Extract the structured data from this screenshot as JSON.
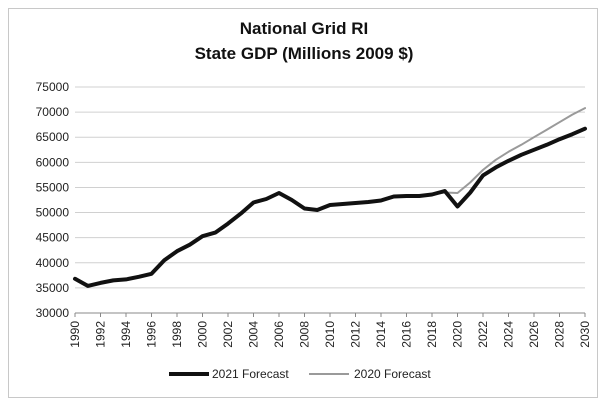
{
  "chart_data": {
    "type": "line",
    "title": "National Grid RI",
    "subtitle": "State GDP (Millions 2009 $)",
    "ylim": [
      30000,
      75000
    ],
    "y_ticks": [
      "75000",
      "70000",
      "65000",
      "60000",
      "55000",
      "50000",
      "45000",
      "40000",
      "35000",
      "30000"
    ],
    "x_tick_labels": [
      "1990",
      "1992",
      "1994",
      "1996",
      "1998",
      "2000",
      "2002",
      "2004",
      "2006",
      "2008",
      "2010",
      "2012",
      "2014",
      "2016",
      "2018",
      "2020",
      "2022",
      "2024",
      "2026",
      "2028",
      "2030"
    ],
    "grid": true,
    "legend_position": "bottom",
    "x": [
      1990,
      1991,
      1992,
      1993,
      1994,
      1995,
      1996,
      1997,
      1998,
      1999,
      2000,
      2001,
      2002,
      2003,
      2004,
      2005,
      2006,
      2007,
      2008,
      2009,
      2010,
      2011,
      2012,
      2013,
      2014,
      2015,
      2016,
      2017,
      2018,
      2019,
      2020,
      2021,
      2022,
      2023,
      2024,
      2025,
      2026,
      2027,
      2028,
      2029,
      2030
    ],
    "series": [
      {
        "name": "2021 Forecast",
        "color": "#111111",
        "values": [
          36800,
          35400,
          36000,
          36500,
          36700,
          37200,
          37800,
          40500,
          42300,
          43600,
          45300,
          46000,
          47800,
          49800,
          52000,
          52700,
          53900,
          52500,
          50800,
          50500,
          51500,
          51700,
          51900,
          52100,
          52400,
          53200,
          53300,
          53300,
          53600,
          54300,
          51200,
          54000,
          57400,
          59000,
          60300,
          61500,
          62500,
          63500,
          64600,
          65600,
          66700
        ],
        "width": 4
      },
      {
        "name": "2020 Forecast",
        "color": "#9a9a9a",
        "values": [
          36800,
          35400,
          36000,
          36500,
          36700,
          37200,
          37800,
          40500,
          42300,
          43600,
          45300,
          46000,
          47800,
          49800,
          52000,
          52700,
          53900,
          52500,
          50800,
          50500,
          51500,
          51700,
          51900,
          52100,
          52400,
          53200,
          53300,
          53300,
          53600,
          54000,
          53900,
          56000,
          58500,
          60500,
          62100,
          63500,
          65000,
          66500,
          68000,
          69500,
          70800
        ],
        "width": 2
      }
    ]
  }
}
